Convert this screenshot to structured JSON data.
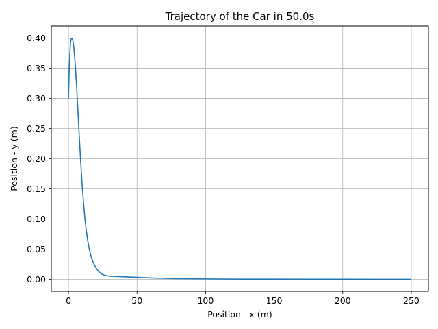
{
  "chart_data": {
    "type": "line",
    "title": "Trajectory of the Car in 50.0s",
    "xlabel": "Position - x (m)",
    "ylabel": "Position - y (m)",
    "xlim": [
      -12.5,
      262.5
    ],
    "ylim": [
      -0.02,
      0.42
    ],
    "xticks": [
      0,
      50,
      100,
      150,
      200,
      250
    ],
    "yticks": [
      0.0,
      0.05,
      0.1,
      0.15,
      0.2,
      0.25,
      0.3,
      0.35,
      0.4
    ],
    "xtick_labels": [
      "0",
      "50",
      "100",
      "150",
      "200",
      "250"
    ],
    "ytick_labels": [
      "0.00",
      "0.05",
      "0.10",
      "0.15",
      "0.20",
      "0.25",
      "0.30",
      "0.35",
      "0.40"
    ],
    "grid": true,
    "series": [
      {
        "color": "#1f77b4",
        "x": [
          0,
          0.5,
          1,
          1.5,
          2,
          2.5,
          3,
          3.5,
          4,
          5,
          6,
          7,
          8,
          9,
          10,
          11,
          12,
          13,
          14,
          15,
          16,
          17,
          18,
          20,
          22,
          24,
          26,
          28,
          30,
          35,
          40,
          50,
          60,
          70,
          80,
          100,
          125,
          150,
          175,
          200,
          225,
          250
        ],
        "y": [
          0.3,
          0.345,
          0.375,
          0.392,
          0.399,
          0.4,
          0.398,
          0.392,
          0.383,
          0.355,
          0.318,
          0.275,
          0.232,
          0.192,
          0.156,
          0.126,
          0.101,
          0.081,
          0.065,
          0.052,
          0.042,
          0.034,
          0.028,
          0.019,
          0.013,
          0.009,
          0.007,
          0.0058,
          0.0052,
          0.0046,
          0.0042,
          0.0032,
          0.0023,
          0.0016,
          0.0011,
          0.0006,
          0.0003,
          0.0002,
          0.0001,
          0.0001,
          0.0,
          0.0
        ]
      }
    ]
  }
}
